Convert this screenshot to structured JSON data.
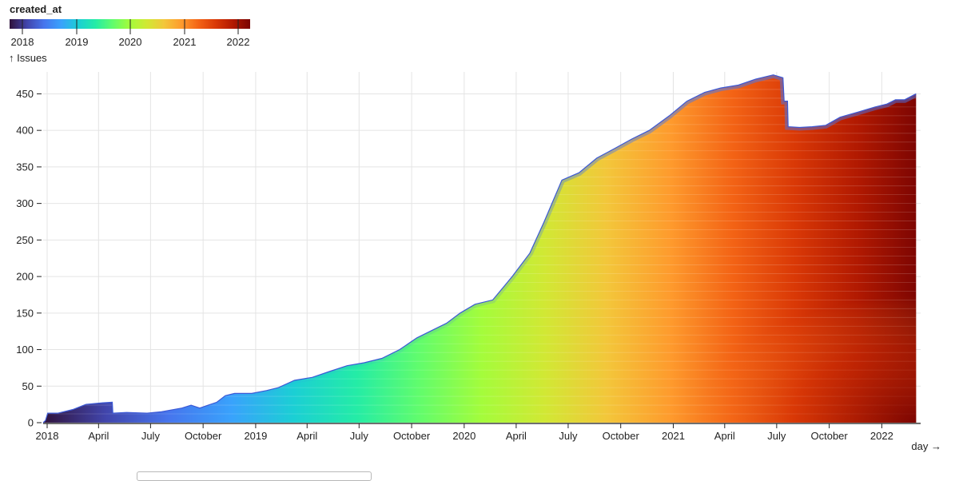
{
  "colors": {
    "scheme": "turbo",
    "grid": "#e4e4e4",
    "axis": "#222222"
  },
  "legend": {
    "title": "created_at",
    "ticks": [
      "2018",
      "2019",
      "2020",
      "2021",
      "2022"
    ]
  },
  "chart_data": {
    "type": "area",
    "title": "",
    "ylabel": "↑ Issues",
    "xlabel": "day →",
    "color_field": "created_at",
    "ylim": [
      0,
      480
    ],
    "y_ticks": [
      0,
      50,
      100,
      150,
      200,
      250,
      300,
      350,
      400,
      450
    ],
    "x_range": [
      "2017-12-25",
      "2022-03-10"
    ],
    "x_ticks": [
      {
        "date": "2018-01-01",
        "label": "2018"
      },
      {
        "date": "2018-04-01",
        "label": "April"
      },
      {
        "date": "2018-07-01",
        "label": "July"
      },
      {
        "date": "2018-10-01",
        "label": "October"
      },
      {
        "date": "2019-01-01",
        "label": "2019"
      },
      {
        "date": "2019-04-01",
        "label": "April"
      },
      {
        "date": "2019-07-01",
        "label": "July"
      },
      {
        "date": "2019-10-01",
        "label": "October"
      },
      {
        "date": "2020-01-01",
        "label": "2020"
      },
      {
        "date": "2020-04-01",
        "label": "April"
      },
      {
        "date": "2020-07-01",
        "label": "July"
      },
      {
        "date": "2020-10-01",
        "label": "October"
      },
      {
        "date": "2021-01-01",
        "label": "2021"
      },
      {
        "date": "2021-04-01",
        "label": "April"
      },
      {
        "date": "2021-07-01",
        "label": "July"
      },
      {
        "date": "2021-10-01",
        "label": "October"
      },
      {
        "date": "2022-01-01",
        "label": "2022"
      }
    ],
    "x": [
      "2017-12-25",
      "2017-12-29",
      "2018-01-02",
      "2018-01-20",
      "2018-02-15",
      "2018-03-10",
      "2018-04-05",
      "2018-04-25",
      "2018-04-26",
      "2018-05-20",
      "2018-06-25",
      "2018-07-20",
      "2018-08-25",
      "2018-09-10",
      "2018-09-25",
      "2018-10-25",
      "2018-11-09",
      "2018-11-25",
      "2018-12-25",
      "2019-01-20",
      "2019-02-10",
      "2019-03-10",
      "2019-04-10",
      "2019-05-10",
      "2019-06-10",
      "2019-07-10",
      "2019-08-10",
      "2019-09-10",
      "2019-10-10",
      "2019-11-10",
      "2019-12-01",
      "2019-12-25",
      "2020-01-20",
      "2020-02-20",
      "2020-03-25",
      "2020-04-25",
      "2020-05-20",
      "2020-06-20",
      "2020-07-20",
      "2020-08-20",
      "2020-09-20",
      "2020-10-20",
      "2020-11-20",
      "2020-12-25",
      "2021-01-25",
      "2021-02-25",
      "2021-03-25",
      "2021-04-25",
      "2021-05-25",
      "2021-06-25",
      "2021-07-12",
      "2021-07-14",
      "2021-07-20",
      "2021-07-21",
      "2021-08-10",
      "2021-09-01",
      "2021-09-25",
      "2021-10-20",
      "2021-11-20",
      "2021-12-20",
      "2022-01-10",
      "2022-01-25",
      "2022-02-10",
      "2022-03-02"
    ],
    "y": [
      0,
      3,
      13,
      13,
      18,
      25,
      27,
      28,
      13,
      14,
      13,
      15,
      20,
      24,
      20,
      28,
      37,
      40,
      40,
      44,
      48,
      58,
      62,
      70,
      78,
      82,
      88,
      100,
      116,
      128,
      136,
      150,
      162,
      168,
      200,
      232,
      275,
      332,
      342,
      362,
      375,
      388,
      400,
      420,
      440,
      452,
      458,
      462,
      470,
      476,
      472,
      440,
      440,
      405,
      404,
      405,
      407,
      418,
      425,
      432,
      436,
      442,
      442,
      450
    ]
  },
  "shading": {
    "note_free": "",
    "layers": [
      {
        "year": "2018",
        "level": 8
      },
      {
        "year": "2019",
        "level": 38
      },
      {
        "year": "2020",
        "level": 150
      },
      {
        "year": "2021",
        "level": 380
      },
      {
        "year": "2022",
        "level": 436
      }
    ]
  }
}
